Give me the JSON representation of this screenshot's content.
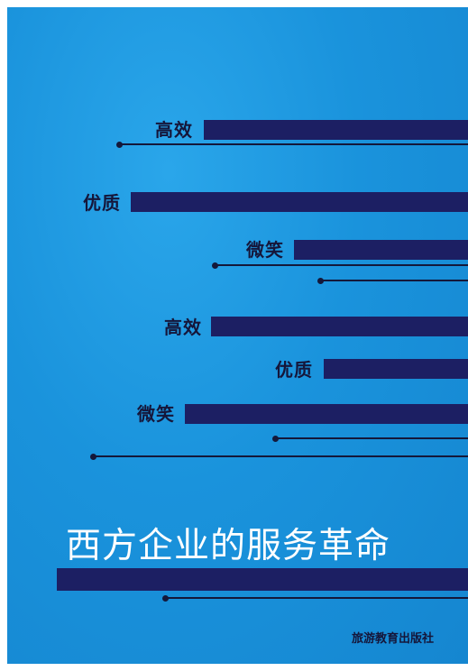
{
  "book_cover": {
    "rows": [
      {
        "label": "高效"
      },
      {
        "label": "优质"
      },
      {
        "label": "微笑"
      },
      {
        "label": "高效"
      },
      {
        "label": "优质"
      },
      {
        "label": "微笑"
      }
    ],
    "title": "西方企业的服务革命",
    "publisher": "旅游教育出版社",
    "colors": {
      "background": "#1a93dc",
      "bars": "#1c1f63",
      "labels": "#15163a",
      "title": "#ffffff"
    }
  }
}
